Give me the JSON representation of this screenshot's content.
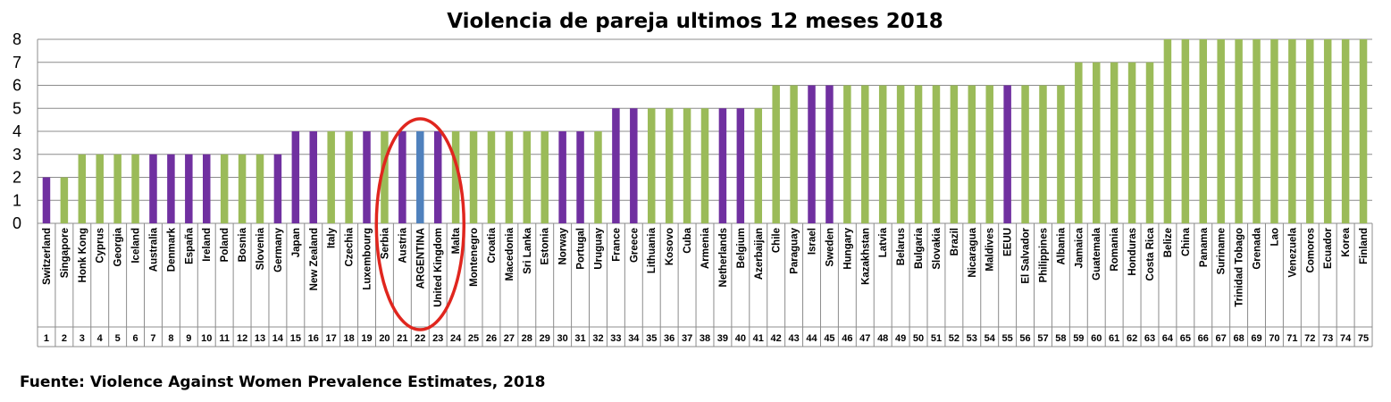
{
  "chart_data": {
    "type": "bar",
    "title": "Violencia de pareja ultimos 12 meses 2018",
    "xlabel": "",
    "ylabel": "",
    "ylim": [
      0,
      8
    ],
    "yticks": [
      "0",
      "1",
      "2",
      "3",
      "4",
      "5",
      "6",
      "7",
      "8"
    ],
    "grid": true,
    "legend": "none",
    "colors": {
      "purple": "#7030A0",
      "green": "#9BBB59",
      "blue": "#4F81BD",
      "highlight": "#E0261E"
    },
    "categories": [
      "Switzerland",
      "Singapore",
      "Honk Kong",
      "Cyprus",
      "Georgia",
      "Iceland",
      "Australia",
      "Denmark",
      "España",
      "Ireland",
      "Poland",
      "Bosnia",
      "Slovenia",
      "Germany",
      "Japan",
      "New Zealand",
      "Italy",
      "Czechia",
      "Luxembourg",
      "Serbia",
      "Austria",
      "ARGENTINA",
      "United Kingdom",
      "Malta",
      "Montenegro",
      "Croatia",
      "Macedonia",
      "Sri Lanka",
      "Estonia",
      "Norway",
      "Portugal",
      "Uruguay",
      "France",
      "Greece",
      "Lithuania",
      "Kosovo",
      "Cuba",
      "Armenia",
      "Netherlands",
      "Belgium",
      "Azerbaijan",
      "Chile",
      "Paraguay",
      "Israel",
      "Sweden",
      "Hungary",
      "Kazakhstan",
      "Latvia",
      "Belarus",
      "Bulgaria",
      "Slovakia",
      "Brazil",
      "Nicaragua",
      "Maldives",
      "EEUU",
      "El Salvador",
      "Philippines",
      "Albania",
      "Jamaica",
      "Guatemala",
      "Romania",
      "Honduras",
      "Costa Rica",
      "Belize",
      "China",
      "Panama",
      "Suriname",
      "Trinidad Tobago",
      "Grenada",
      "Lao",
      "Venezuela",
      "Comoros",
      "Ecuador",
      "Korea",
      "Finland"
    ],
    "ranks": [
      "1",
      "2",
      "3",
      "4",
      "5",
      "6",
      "7",
      "8",
      "9",
      "10",
      "11",
      "12",
      "13",
      "14",
      "15",
      "16",
      "17",
      "18",
      "19",
      "20",
      "21",
      "22",
      "23",
      "24",
      "25",
      "26",
      "27",
      "28",
      "29",
      "30",
      "31",
      "32",
      "33",
      "34",
      "35",
      "36",
      "37",
      "38",
      "39",
      "40",
      "41",
      "42",
      "43",
      "44",
      "45",
      "46",
      "47",
      "48",
      "49",
      "50",
      "51",
      "52",
      "53",
      "54",
      "55",
      "56",
      "57",
      "58",
      "59",
      "60",
      "61",
      "62",
      "63",
      "64",
      "65",
      "66",
      "67",
      "68",
      "69",
      "70",
      "71",
      "72",
      "73",
      "74",
      "75"
    ],
    "values": [
      2,
      2,
      3,
      3,
      3,
      3,
      3,
      3,
      3,
      3,
      3,
      3,
      3,
      3,
      4,
      4,
      4,
      4,
      4,
      4,
      4,
      4,
      4,
      4,
      4,
      4,
      4,
      4,
      4,
      4,
      4,
      4,
      5,
      5,
      5,
      5,
      5,
      5,
      5,
      5,
      5,
      6,
      6,
      6,
      6,
      6,
      6,
      6,
      6,
      6,
      6,
      6,
      6,
      6,
      6,
      6,
      6,
      6,
      7,
      7,
      7,
      7,
      7,
      8,
      8,
      8,
      8,
      8,
      8,
      8,
      8,
      8,
      8,
      8,
      8
    ],
    "bar_colors": [
      "purple",
      "green",
      "green",
      "green",
      "green",
      "green",
      "purple",
      "purple",
      "purple",
      "purple",
      "green",
      "green",
      "green",
      "purple",
      "purple",
      "purple",
      "green",
      "green",
      "purple",
      "green",
      "purple",
      "blue",
      "purple",
      "green",
      "green",
      "green",
      "green",
      "green",
      "green",
      "purple",
      "purple",
      "green",
      "purple",
      "purple",
      "green",
      "green",
      "green",
      "green",
      "purple",
      "purple",
      "green",
      "green",
      "green",
      "purple",
      "purple",
      "green",
      "green",
      "green",
      "green",
      "green",
      "green",
      "green",
      "green",
      "green",
      "purple",
      "green",
      "green",
      "green",
      "green",
      "green",
      "green",
      "green",
      "green",
      "green",
      "green",
      "green",
      "green",
      "green",
      "green",
      "green",
      "green",
      "green",
      "green",
      "green",
      "green"
    ],
    "highlight": {
      "shape": "ellipse",
      "around": [
        "Serbia",
        "Austria",
        "ARGENTINA",
        "United Kingdom",
        "Malta"
      ]
    }
  },
  "source": "Fuente: Violence Against Women Prevalence Estimates, 2018"
}
